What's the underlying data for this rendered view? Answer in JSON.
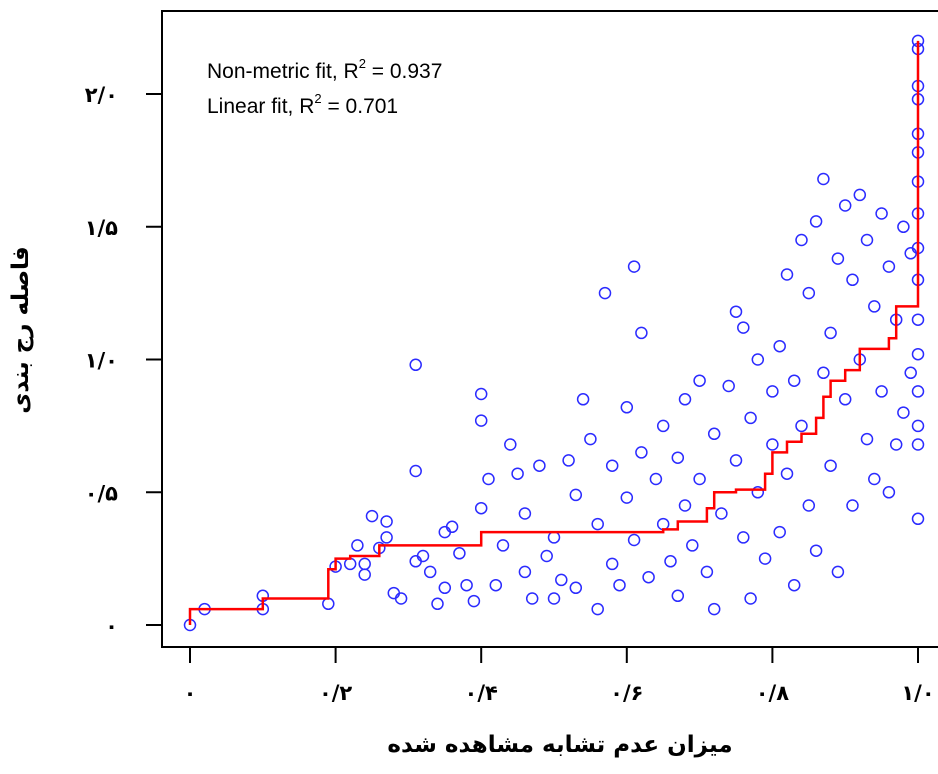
{
  "chart_data": {
    "type": "scatter",
    "title": "",
    "xlabel": "میزان عدم تشابه مشاهده شده",
    "ylabel": "فاصله رج بندی",
    "xlim": [
      0,
      1.0
    ],
    "ylim": [
      0,
      2.0
    ],
    "x_ticks": [
      0,
      0.2,
      0.4,
      0.6,
      0.8,
      1.0
    ],
    "x_tick_labels": [
      "۰",
      "۰/۲",
      "۰/۴",
      "۰/۶",
      "۰/۸",
      "۱/۰"
    ],
    "y_ticks": [
      0,
      0.5,
      1.0,
      1.5,
      2.0
    ],
    "y_tick_labels": [
      "۰",
      "۰/۵",
      "۱/۰",
      "۱/۵",
      "۲/۰"
    ],
    "grid": false,
    "legend_position": "top-left",
    "annotations": [
      {
        "prefix": "Non-metric fit, R",
        "sup": "2",
        "suffix": " = 0.937"
      },
      {
        "prefix": "Linear fit, R",
        "sup": "2",
        "suffix": " = 0.701"
      }
    ],
    "colors": {
      "points": "#2b2bff",
      "fit_line": "#ff0000",
      "axis": "#000000"
    },
    "series": [
      {
        "kind": "points",
        "marker": "open-circle",
        "points": [
          [
            0.0,
            0.0
          ],
          [
            0.02,
            0.06
          ],
          [
            0.1,
            0.06
          ],
          [
            0.1,
            0.11
          ],
          [
            0.19,
            0.08
          ],
          [
            0.2,
            0.22
          ],
          [
            0.22,
            0.23
          ],
          [
            0.23,
            0.3
          ],
          [
            0.24,
            0.23
          ],
          [
            0.24,
            0.19
          ],
          [
            0.25,
            0.41
          ],
          [
            0.26,
            0.29
          ],
          [
            0.27,
            0.33
          ],
          [
            0.27,
            0.39
          ],
          [
            0.28,
            0.12
          ],
          [
            0.29,
            0.1
          ],
          [
            0.31,
            0.98
          ],
          [
            0.31,
            0.58
          ],
          [
            0.31,
            0.24
          ],
          [
            0.32,
            0.26
          ],
          [
            0.33,
            0.2
          ],
          [
            0.34,
            0.08
          ],
          [
            0.35,
            0.35
          ],
          [
            0.35,
            0.14
          ],
          [
            0.36,
            0.37
          ],
          [
            0.37,
            0.27
          ],
          [
            0.38,
            0.15
          ],
          [
            0.39,
            0.09
          ],
          [
            0.4,
            0.87
          ],
          [
            0.4,
            0.77
          ],
          [
            0.4,
            0.44
          ],
          [
            0.41,
            0.55
          ],
          [
            0.42,
            0.15
          ],
          [
            0.43,
            0.3
          ],
          [
            0.44,
            0.68
          ],
          [
            0.45,
            0.57
          ],
          [
            0.46,
            0.42
          ],
          [
            0.46,
            0.2
          ],
          [
            0.47,
            0.1
          ],
          [
            0.48,
            0.6
          ],
          [
            0.49,
            0.26
          ],
          [
            0.5,
            0.33
          ],
          [
            0.5,
            0.1
          ],
          [
            0.51,
            0.17
          ],
          [
            0.52,
            0.62
          ],
          [
            0.53,
            0.49
          ],
          [
            0.53,
            0.14
          ],
          [
            0.54,
            0.85
          ],
          [
            0.55,
            0.7
          ],
          [
            0.56,
            0.38
          ],
          [
            0.56,
            0.06
          ],
          [
            0.57,
            1.25
          ],
          [
            0.58,
            0.6
          ],
          [
            0.58,
            0.23
          ],
          [
            0.59,
            0.15
          ],
          [
            0.6,
            0.82
          ],
          [
            0.6,
            0.48
          ],
          [
            0.61,
            1.35
          ],
          [
            0.61,
            0.32
          ],
          [
            0.62,
            1.1
          ],
          [
            0.62,
            0.65
          ],
          [
            0.63,
            0.18
          ],
          [
            0.64,
            0.55
          ],
          [
            0.65,
            0.75
          ],
          [
            0.65,
            0.38
          ],
          [
            0.66,
            0.24
          ],
          [
            0.67,
            0.63
          ],
          [
            0.67,
            0.11
          ],
          [
            0.68,
            0.85
          ],
          [
            0.68,
            0.45
          ],
          [
            0.69,
            0.3
          ],
          [
            0.7,
            0.92
          ],
          [
            0.7,
            0.55
          ],
          [
            0.71,
            0.2
          ],
          [
            0.72,
            0.72
          ],
          [
            0.72,
            0.06
          ],
          [
            0.73,
            0.42
          ],
          [
            0.74,
            0.9
          ],
          [
            0.75,
            1.18
          ],
          [
            0.75,
            0.62
          ],
          [
            0.76,
            1.12
          ],
          [
            0.76,
            0.33
          ],
          [
            0.77,
            0.78
          ],
          [
            0.77,
            0.1
          ],
          [
            0.78,
            1.0
          ],
          [
            0.78,
            0.5
          ],
          [
            0.79,
            0.25
          ],
          [
            0.8,
            0.88
          ],
          [
            0.8,
            0.68
          ],
          [
            0.81,
            1.05
          ],
          [
            0.81,
            0.35
          ],
          [
            0.82,
            1.32
          ],
          [
            0.82,
            0.57
          ],
          [
            0.83,
            0.92
          ],
          [
            0.83,
            0.15
          ],
          [
            0.84,
            1.45
          ],
          [
            0.84,
            0.75
          ],
          [
            0.85,
            1.25
          ],
          [
            0.85,
            0.45
          ],
          [
            0.86,
            1.52
          ],
          [
            0.86,
            0.28
          ],
          [
            0.87,
            1.68
          ],
          [
            0.87,
            0.95
          ],
          [
            0.88,
            1.1
          ],
          [
            0.88,
            0.6
          ],
          [
            0.89,
            1.38
          ],
          [
            0.89,
            0.2
          ],
          [
            0.9,
            1.58
          ],
          [
            0.9,
            0.85
          ],
          [
            0.91,
            1.3
          ],
          [
            0.91,
            0.45
          ],
          [
            0.92,
            1.62
          ],
          [
            0.92,
            1.0
          ],
          [
            0.93,
            1.45
          ],
          [
            0.93,
            0.7
          ],
          [
            0.94,
            1.2
          ],
          [
            0.94,
            0.55
          ],
          [
            0.95,
            1.55
          ],
          [
            0.95,
            0.88
          ],
          [
            0.96,
            1.35
          ],
          [
            0.96,
            0.5
          ],
          [
            0.97,
            1.15
          ],
          [
            0.97,
            0.68
          ],
          [
            0.98,
            1.5
          ],
          [
            0.98,
            0.8
          ],
          [
            0.99,
            1.4
          ],
          [
            0.99,
            0.95
          ],
          [
            1.0,
            2.2
          ],
          [
            1.0,
            2.17
          ],
          [
            1.0,
            2.03
          ],
          [
            1.0,
            1.98
          ],
          [
            1.0,
            1.85
          ],
          [
            1.0,
            1.78
          ],
          [
            1.0,
            1.67
          ],
          [
            1.0,
            1.55
          ],
          [
            1.0,
            1.42
          ],
          [
            1.0,
            1.3
          ],
          [
            1.0,
            1.15
          ],
          [
            1.0,
            1.02
          ],
          [
            1.0,
            0.88
          ],
          [
            1.0,
            0.75
          ],
          [
            1.0,
            0.68
          ],
          [
            1.0,
            0.4
          ]
        ]
      },
      {
        "kind": "step-line",
        "name": "Non-metric fit",
        "points": [
          [
            0.0,
            0.0
          ],
          [
            0.0,
            0.06
          ],
          [
            0.1,
            0.06
          ],
          [
            0.1,
            0.1
          ],
          [
            0.19,
            0.1
          ],
          [
            0.19,
            0.21
          ],
          [
            0.2,
            0.21
          ],
          [
            0.2,
            0.25
          ],
          [
            0.22,
            0.25
          ],
          [
            0.22,
            0.26
          ],
          [
            0.26,
            0.26
          ],
          [
            0.26,
            0.3
          ],
          [
            0.38,
            0.3
          ],
          [
            0.38,
            0.3
          ],
          [
            0.4,
            0.3
          ],
          [
            0.4,
            0.35
          ],
          [
            0.55,
            0.35
          ],
          [
            0.6,
            0.35
          ],
          [
            0.65,
            0.35
          ],
          [
            0.65,
            0.36
          ],
          [
            0.67,
            0.36
          ],
          [
            0.67,
            0.39
          ],
          [
            0.71,
            0.39
          ],
          [
            0.71,
            0.44
          ],
          [
            0.72,
            0.44
          ],
          [
            0.72,
            0.5
          ],
          [
            0.75,
            0.5
          ],
          [
            0.75,
            0.51
          ],
          [
            0.79,
            0.51
          ],
          [
            0.79,
            0.57
          ],
          [
            0.8,
            0.57
          ],
          [
            0.8,
            0.65
          ],
          [
            0.82,
            0.65
          ],
          [
            0.82,
            0.69
          ],
          [
            0.84,
            0.69
          ],
          [
            0.84,
            0.72
          ],
          [
            0.86,
            0.72
          ],
          [
            0.86,
            0.78
          ],
          [
            0.87,
            0.78
          ],
          [
            0.87,
            0.86
          ],
          [
            0.88,
            0.86
          ],
          [
            0.88,
            0.92
          ],
          [
            0.9,
            0.92
          ],
          [
            0.9,
            0.96
          ],
          [
            0.92,
            0.96
          ],
          [
            0.92,
            1.04
          ],
          [
            0.96,
            1.04
          ],
          [
            0.96,
            1.08
          ],
          [
            0.97,
            1.08
          ],
          [
            0.97,
            1.2
          ],
          [
            0.99,
            1.2
          ],
          [
            0.99,
            1.2
          ],
          [
            1.0,
            1.2
          ],
          [
            1.0,
            2.2
          ]
        ]
      }
    ]
  }
}
